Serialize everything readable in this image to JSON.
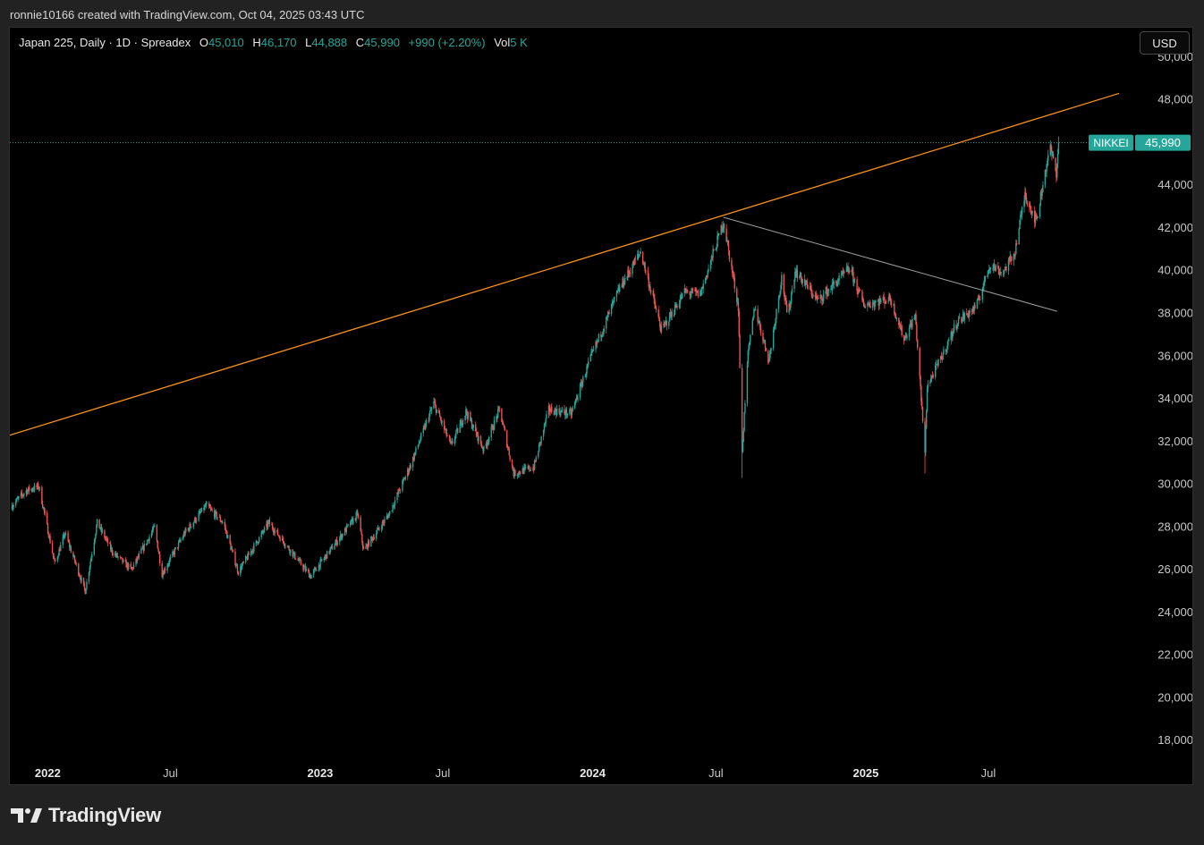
{
  "header": {
    "attribution": "ronnie10166 created with TradingView.com, Oct 04, 2025 03:43 UTC"
  },
  "legend": {
    "symbol": "Japan 225, Daily · 1D · Spreadex",
    "open_label": "O",
    "open": "45,010",
    "high_label": "H",
    "high": "46,170",
    "low_label": "L",
    "low": "44,888",
    "close_label": "C",
    "close": "45,990",
    "change": "+990 (+2.20%)",
    "vol_label": "Vol",
    "vol": "5 K"
  },
  "currency_button": "USD",
  "price_badge": {
    "label": "NIKKEI",
    "value": "45,990"
  },
  "footer": {
    "brand": "TradingView"
  },
  "colors": {
    "up": "#26a69a",
    "down": "#ef5350",
    "trendline_orange": "#f7931a",
    "trendline_gray": "#9e9e9e",
    "background": "#000000"
  },
  "chart_data": {
    "type": "candlestick",
    "series_name": "Japan 225",
    "interval": "1D",
    "y_range": [
      16000,
      51500
    ],
    "x_range": [
      "2021-11-28",
      "2025-12-23"
    ],
    "y_ticks": [
      "50,000",
      "48,000",
      "44,000",
      "42,000",
      "40,000",
      "38,000",
      "36,000",
      "34,000",
      "32,000",
      "30,000",
      "28,000",
      "26,000",
      "24,000",
      "22,000",
      "20,000",
      "18,000"
    ],
    "y_tick_values": [
      50000,
      48000,
      44000,
      42000,
      40000,
      38000,
      36000,
      34000,
      32000,
      30000,
      28000,
      26000,
      24000,
      22000,
      20000,
      18000
    ],
    "x_ticks": [
      {
        "label": "2022",
        "date": "2022-01-01",
        "bold": true
      },
      {
        "label": "Jul",
        "date": "2022-07-01",
        "bold": false
      },
      {
        "label": "2023",
        "date": "2023-01-01",
        "bold": true
      },
      {
        "label": "Jul",
        "date": "2023-07-01",
        "bold": false
      },
      {
        "label": "2024",
        "date": "2024-01-01",
        "bold": true
      },
      {
        "label": "Jul",
        "date": "2024-07-01",
        "bold": false
      },
      {
        "label": "2025",
        "date": "2025-01-01",
        "bold": true
      },
      {
        "label": "Jul",
        "date": "2025-07-01",
        "bold": false
      }
    ],
    "last_price": 45990,
    "price_path": [
      [
        "2021-12-01",
        29000
      ],
      [
        "2021-12-20",
        29700
      ],
      [
        "2022-01-06",
        29900
      ],
      [
        "2022-01-20",
        27500
      ],
      [
        "2022-01-27",
        26300
      ],
      [
        "2022-02-10",
        27700
      ],
      [
        "2022-03-09",
        25000
      ],
      [
        "2022-03-25",
        28200
      ],
      [
        "2022-04-15",
        26800
      ],
      [
        "2022-05-10",
        26000
      ],
      [
        "2022-06-10",
        28000
      ],
      [
        "2022-06-20",
        25800
      ],
      [
        "2022-07-20",
        27700
      ],
      [
        "2022-08-18",
        29000
      ],
      [
        "2022-09-10",
        28200
      ],
      [
        "2022-09-30",
        25900
      ],
      [
        "2022-11-10",
        28200
      ],
      [
        "2022-12-20",
        26400
      ],
      [
        "2023-01-05",
        25700
      ],
      [
        "2023-02-15",
        27600
      ],
      [
        "2023-03-09",
        28600
      ],
      [
        "2023-03-17",
        26900
      ],
      [
        "2023-04-20",
        28600
      ],
      [
        "2023-05-20",
        31000
      ],
      [
        "2023-06-19",
        33800
      ],
      [
        "2023-07-12",
        31800
      ],
      [
        "2023-08-01",
        33400
      ],
      [
        "2023-08-25",
        31600
      ],
      [
        "2023-09-15",
        33500
      ],
      [
        "2023-10-04",
        30500
      ],
      [
        "2023-10-31",
        30800
      ],
      [
        "2023-11-20",
        33500
      ],
      [
        "2023-12-20",
        33300
      ],
      [
        "2024-01-15",
        35900
      ],
      [
        "2024-02-22",
        39100
      ],
      [
        "2024-03-22",
        40900
      ],
      [
        "2024-04-19",
        37200
      ],
      [
        "2024-05-20",
        39000
      ],
      [
        "2024-06-10",
        38900
      ],
      [
        "2024-07-11",
        42300
      ],
      [
        "2024-07-31",
        38300
      ],
      [
        "2024-08-05",
        31400
      ],
      [
        "2024-08-12",
        35800
      ],
      [
        "2024-08-22",
        38300
      ],
      [
        "2024-09-10",
        35800
      ],
      [
        "2024-09-27",
        39700
      ],
      [
        "2024-10-05",
        37800
      ],
      [
        "2024-10-15",
        40000
      ],
      [
        "2024-11-15",
        38600
      ],
      [
        "2024-12-27",
        40100
      ],
      [
        "2025-01-15",
        38400
      ],
      [
        "2025-02-20",
        38700
      ],
      [
        "2025-03-10",
        36800
      ],
      [
        "2025-03-25",
        37900
      ],
      [
        "2025-04-07",
        31500
      ],
      [
        "2025-04-10",
        34600
      ],
      [
        "2025-04-30",
        36000
      ],
      [
        "2025-05-20",
        37600
      ],
      [
        "2025-06-15",
        38300
      ],
      [
        "2025-07-03",
        40300
      ],
      [
        "2025-07-20",
        39900
      ],
      [
        "2025-08-05",
        40800
      ],
      [
        "2025-08-19",
        43600
      ],
      [
        "2025-09-03",
        42300
      ],
      [
        "2025-09-18",
        45200
      ],
      [
        "2025-09-22",
        45700
      ],
      [
        "2025-09-30",
        44600
      ],
      [
        "2025-10-03",
        45990
      ]
    ],
    "spikes": [
      {
        "date": "2024-08-05",
        "low": 30300
      },
      {
        "date": "2025-04-07",
        "low": 30500
      }
    ],
    "trendlines": [
      {
        "color": "orange",
        "from": [
          "2021-11-28",
          32300
        ],
        "to": [
          "2025-12-23",
          48300
        ]
      },
      {
        "color": "gray",
        "from": [
          "2024-07-11",
          42500
        ],
        "to": [
          "2025-10-01",
          38100
        ]
      }
    ]
  }
}
